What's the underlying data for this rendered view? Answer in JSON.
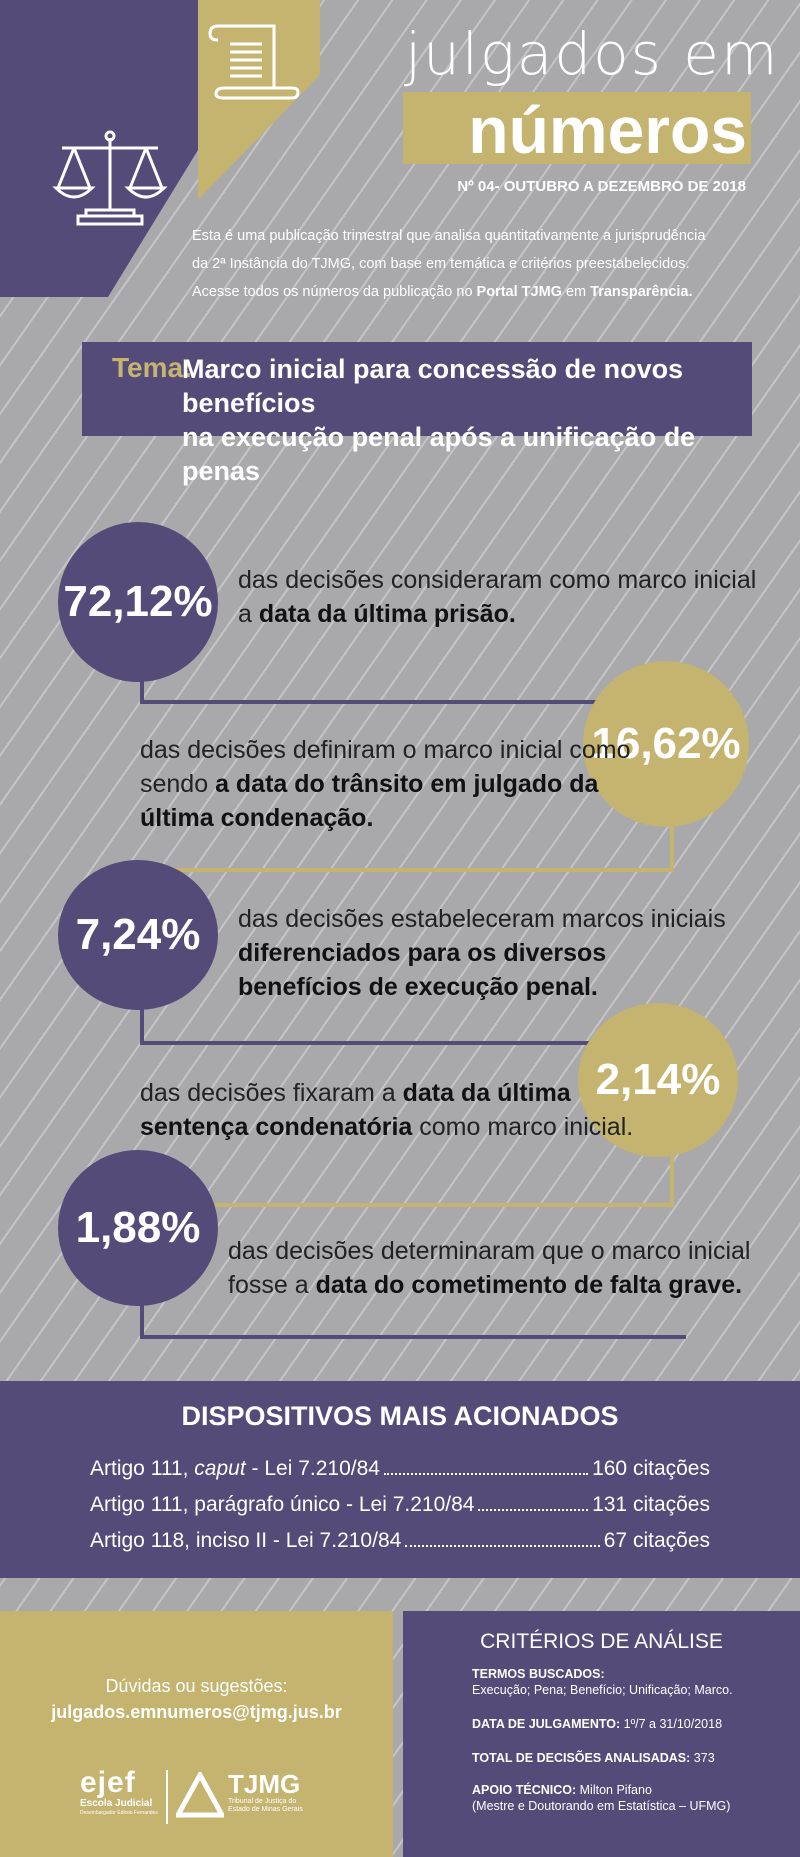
{
  "header": {
    "title_line1": "julgados em",
    "title_line2": "números",
    "edition": "Nº 04- OUTUBRO A DEZEMBRO DE 2018",
    "intro_line1": "Esta é uma publicação trimestral que analisa quantitativamente a jurisprudência",
    "intro_line2": "da 2ª Instância do TJMG, com base em temática e critérios preestabelecidos.",
    "intro_line3_a": "Acesse todos os números da publicação no ",
    "intro_line3_b": "Portal TJMG",
    "intro_line3_c": " em ",
    "intro_line3_d": "Transparência."
  },
  "tema": {
    "label": "Tema:",
    "line1": "Marco inicial para concessão de novos benefícios",
    "line2": "na execução penal após a unificação de penas"
  },
  "stats": [
    {
      "value": "72,12%",
      "t1": "das decisões consideraram como marco inicial",
      "t2a": "a ",
      "t2b": "data da última prisão."
    },
    {
      "value": "16,62%",
      "t1": "das decisões definiram o marco inicial como",
      "t2a": "sendo ",
      "t2b": "a data do trânsito em julgado da",
      "t3": "última condenação."
    },
    {
      "value": "7,24%",
      "t1": "das decisões estabeleceram marcos iniciais",
      "t2": "diferenciados para os diversos",
      "t3": "benefícios de execução penal."
    },
    {
      "value": "2,14%",
      "t1a": "das decisões fixaram a ",
      "t1b": "data da última",
      "t2a": "sentença condenatória",
      "t2b": " como marco inicial."
    },
    {
      "value": "1,88%",
      "t1": "das decisões determinaram que o marco inicial",
      "t2a": "fosse a ",
      "t2b": "data do cometimento de falta grave."
    }
  ],
  "dispositivos": {
    "title": "DISPOSITIVOS MAIS ACIONADOS",
    "rows": [
      {
        "label_a": "Artigo 111, ",
        "label_b": "caput",
        "label_c": " - Lei 7.210/84",
        "count": "160 citações"
      },
      {
        "label_a": "Artigo 111, parágrafo único - Lei 7.210/84",
        "label_b": "",
        "label_c": "",
        "count": "131 citações"
      },
      {
        "label_a": "Artigo 118, inciso II - Lei 7.210/84",
        "label_b": "",
        "label_c": "",
        "count": "67 citações"
      }
    ]
  },
  "contact": {
    "duvidas": "Dúvidas ou sugestões:",
    "email": "julgados.emnumeros@tjmg.jus.br"
  },
  "logos": {
    "ejef_name": "ejef",
    "ejef_sub1": "Escola Judicial",
    "ejef_sub2": "Desembargador Edésio Fernandes",
    "tjmg_name": "TJMG",
    "tjmg_sub1": "Tribunal de Justiça do",
    "tjmg_sub2": "Estado de Minas Gerais"
  },
  "criterios": {
    "title": "CRITÉRIOS DE ANÁLISE",
    "termos_label": "TERMOS BUSCADOS:",
    "termos_value": "Execução; Pena; Benefício; Unificação; Marco.",
    "data_label": "DATA DE JULGAMENTO:",
    "data_value": " 1º/7 a 31/10/2018",
    "total_label": "TOTAL DE DECISÕES ANALISADAS:",
    "total_value": " 373",
    "apoio_label": "APOIO TÉCNICO:",
    "apoio_value": " Milton Pifano",
    "apoio_value2": "(Mestre e Doutorando em Estatística – UFMG)"
  },
  "colors": {
    "purple": "#554b79",
    "gold": "#c4b470",
    "background": "#a9a9ac"
  },
  "icons": [
    "scales-of-justice-icon",
    "document-scroll-icon"
  ]
}
